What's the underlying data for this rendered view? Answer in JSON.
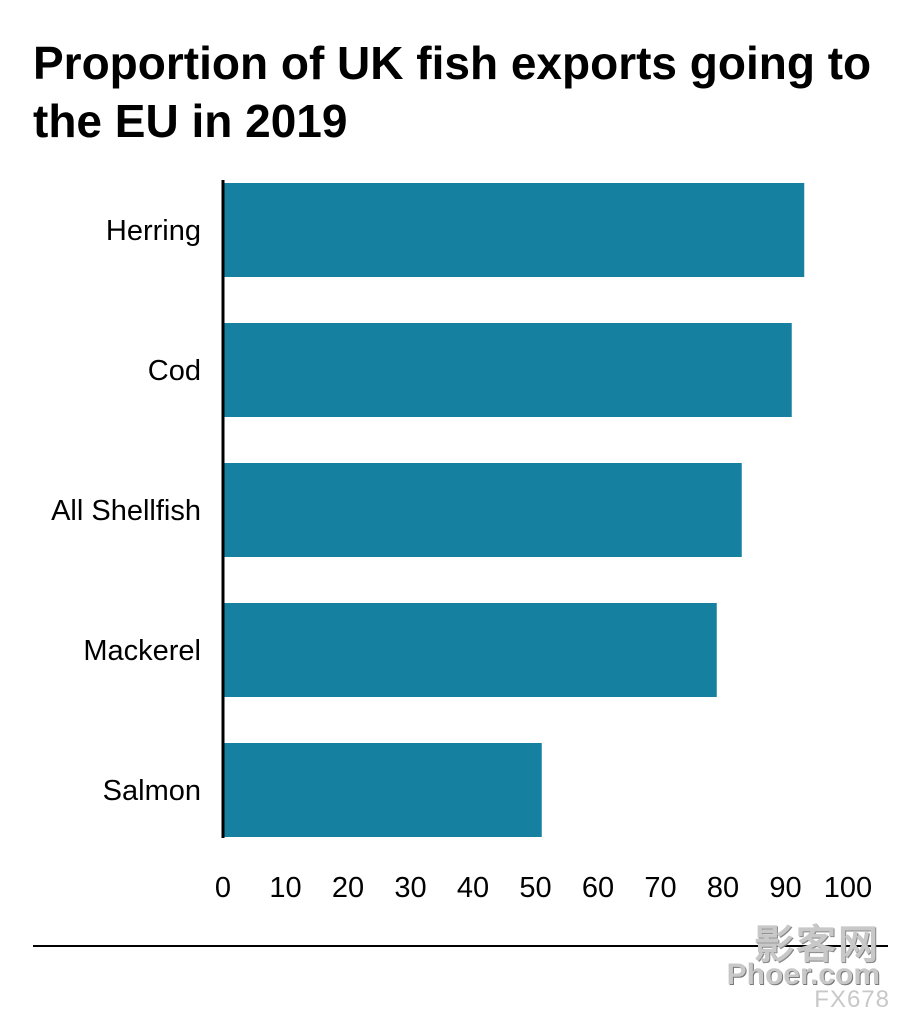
{
  "chart_data": {
    "type": "bar",
    "orientation": "horizontal",
    "title": "Proportion of UK fish exports going to the EU in 2019",
    "categories": [
      "Herring",
      "Cod",
      "All Shellfish",
      "Mackerel",
      "Salmon"
    ],
    "values": [
      93,
      91,
      83,
      79,
      51
    ],
    "xlim": [
      0,
      100
    ],
    "xticks": [
      "0",
      "10",
      "20",
      "30",
      "40",
      "50",
      "60",
      "70",
      "80",
      "90",
      "100"
    ],
    "xlabel": "",
    "ylabel": "",
    "grid": false,
    "bar_color": "#1580a0"
  },
  "watermark": {
    "chinese": "影客网",
    "site": "Phoer.com",
    "code": "FX678"
  }
}
